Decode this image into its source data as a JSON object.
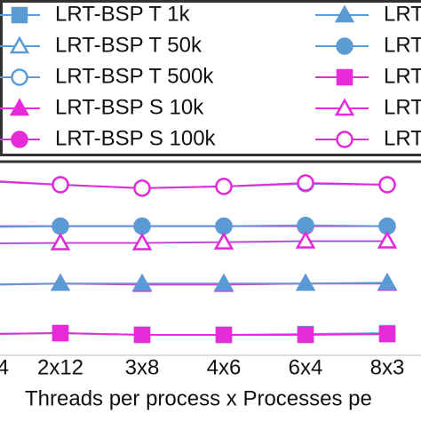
{
  "chart_data": {
    "type": "line",
    "x_label": "Threads per process x Processes pe",
    "categories": [
      "4",
      "2x12",
      "3x8",
      "4x6",
      "6x4",
      "8x3"
    ],
    "ylim": [
      0,
      100
    ],
    "legend": "top",
    "series": [
      {
        "name": "LRT-BSP T 1k",
        "color": "#5b9bd5",
        "marker": "square",
        "filled": true,
        "values": [
          11,
          11.5,
          10.6,
          10.6,
          11,
          11.5
        ]
      },
      {
        "name": "LRT-BSP T 50k",
        "color": "#5b9bd5",
        "marker": "triangle",
        "filled": false,
        "values": [
          58,
          58.3,
          58.3,
          58.7,
          59.2,
          59.2
        ]
      },
      {
        "name": "LRT-BSP T 500k",
        "color": "#5b9bd5",
        "marker": "circle",
        "filled": false,
        "values": [
          90.4,
          88.5,
          86.7,
          87.6,
          89,
          88.5
        ]
      },
      {
        "name": "LRT-BSP S 10k",
        "color": "#e62ad8",
        "marker": "triangle",
        "filled": true,
        "values": [
          36.5,
          37.2,
          36.7,
          36.7,
          37.2,
          37.2
        ]
      },
      {
        "name": "LRT-BSP S 100k",
        "color": "#e62ad8",
        "marker": "circle",
        "filled": true,
        "values": [
          67,
          67,
          67,
          67,
          67,
          67
        ]
      },
      {
        "name": "LRT",
        "color": "#5b9bd5",
        "marker": "triangle",
        "filled": true,
        "values": [
          36.7,
          37.2,
          37.2,
          37.2,
          37.2,
          37.6
        ]
      },
      {
        "name": "LRT",
        "color": "#5b9bd5",
        "marker": "circle",
        "filled": true,
        "values": [
          66.5,
          67,
          67,
          67,
          67.4,
          67
        ]
      },
      {
        "name": "LRT",
        "color": "#e62ad8",
        "marker": "square",
        "filled": true,
        "values": [
          11,
          11.5,
          10.6,
          10.6,
          10.6,
          11
        ]
      },
      {
        "name": "LRT",
        "color": "#e62ad8",
        "marker": "triangle",
        "filled": false,
        "values": [
          58,
          58.3,
          58.3,
          58.7,
          59.2,
          59.2
        ]
      },
      {
        "name": "LRT",
        "color": "#e62ad8",
        "marker": "circle",
        "filled": false,
        "values": [
          90.8,
          88.5,
          86.7,
          87.6,
          89.4,
          88.5
        ]
      }
    ]
  }
}
